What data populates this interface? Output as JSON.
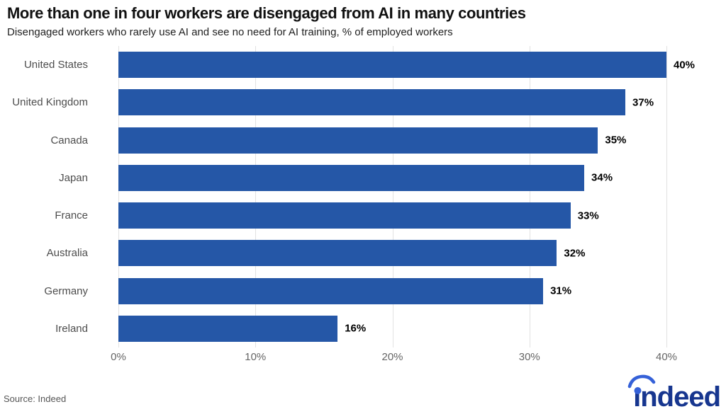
{
  "header": {
    "title": "More than one in four workers are disengaged from AI in many countries",
    "subtitle": "Disengaged workers who rarely use AI and see no need for AI training, % of employed workers"
  },
  "footer": {
    "source": "Source: Indeed",
    "logo_text": "indeed"
  },
  "colors": {
    "bar": "#2557a7",
    "gridline": "#e2e2e2",
    "title": "#111111",
    "subtitle": "#1f1f1f",
    "category_label": "#4d4d4d",
    "axis_label": "#666666",
    "value_label": "#000000",
    "source": "#555555",
    "logo_dark": "#17368f",
    "logo_accent": "#3561d8"
  },
  "chart_data": {
    "type": "bar",
    "orientation": "horizontal",
    "title": "More than one in four workers are disengaged from AI in many countries",
    "subtitle": "Disengaged workers who rarely use AI and see no need for AI training, % of employed workers",
    "categories": [
      "United States",
      "United Kingdom",
      "Canada",
      "Japan",
      "France",
      "Australia",
      "Germany",
      "Ireland"
    ],
    "values": [
      40,
      37,
      35,
      34,
      33,
      32,
      31,
      16
    ],
    "value_labels": [
      "40%",
      "37%",
      "35%",
      "34%",
      "33%",
      "32%",
      "31%",
      "16%"
    ],
    "x_ticks": [
      "0%",
      "10%",
      "20%",
      "30%",
      "40%"
    ],
    "x_tick_values": [
      0,
      10,
      20,
      30,
      40
    ],
    "xlim": [
      0,
      40
    ],
    "grid": "vertical",
    "legend": "none",
    "bar_label_position": "outside-end"
  }
}
